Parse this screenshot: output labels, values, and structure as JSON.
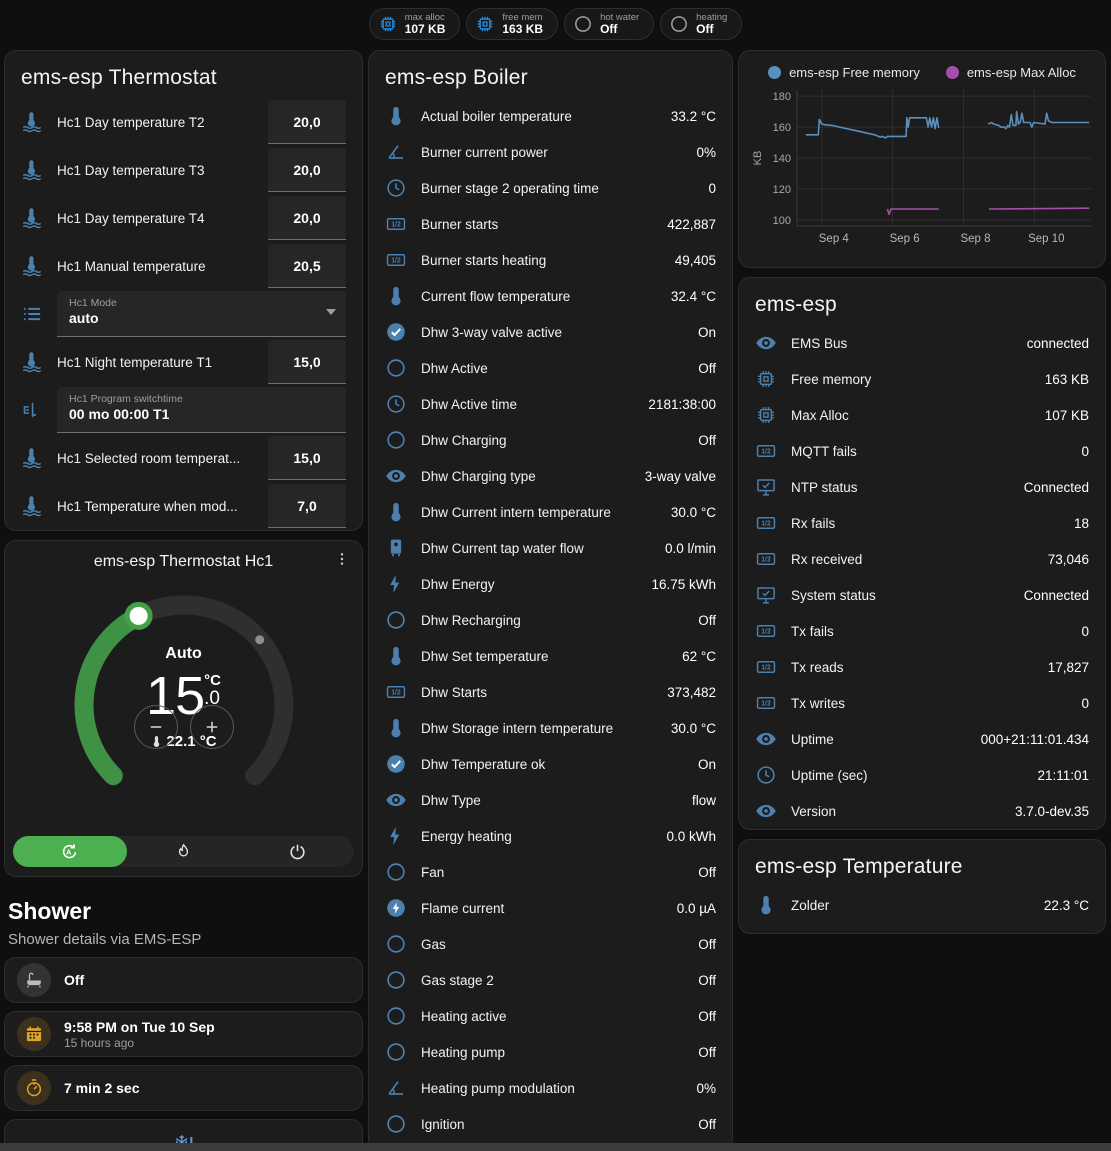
{
  "badges": [
    {
      "name": "max-alloc-badge",
      "label": "max alloc",
      "value": "107 KB",
      "icon": "chip",
      "icon_color": "#2196f3"
    },
    {
      "name": "free-mem-badge",
      "label": "free mem",
      "value": "163 KB",
      "icon": "chip",
      "icon_color": "#2196f3"
    },
    {
      "name": "hot-water-badge",
      "label": "hot water",
      "value": "Off",
      "icon": "circle",
      "icon_color": "#9e9e9e"
    },
    {
      "name": "heating-badge",
      "label": "heating",
      "value": "Off",
      "icon": "circle",
      "icon_color": "#9e9e9e"
    }
  ],
  "thermostat_card": {
    "title": "ems-esp Thermostat",
    "rows": [
      {
        "type": "number",
        "icon": "thermometer-water",
        "label": "Hc1 Day temperature T2",
        "value": "20,0"
      },
      {
        "type": "number",
        "icon": "thermometer-water",
        "label": "Hc1 Day temperature T3",
        "value": "20,0"
      },
      {
        "type": "number",
        "icon": "thermometer-water",
        "label": "Hc1 Day temperature T4",
        "value": "20,0"
      },
      {
        "type": "number",
        "icon": "thermometer-water",
        "label": "Hc1 Manual temperature",
        "value": "20,5"
      },
      {
        "type": "select",
        "icon": "list",
        "label": "Hc1 Mode",
        "value": "auto"
      },
      {
        "type": "number",
        "icon": "thermometer-water",
        "label": "Hc1 Night temperature T1",
        "value": "15,0"
      },
      {
        "type": "text",
        "icon": "switchtime",
        "label": "Hc1 Program switchtime",
        "value": "00 mo 00:00 T1"
      },
      {
        "type": "number",
        "icon": "thermometer-water",
        "label": "Hc1 Selected room temperat...",
        "value": "15,0"
      },
      {
        "type": "number",
        "icon": "thermometer-water",
        "label": "Hc1 Temperature when mod...",
        "value": "7,0"
      }
    ]
  },
  "dial_card": {
    "title": "ems-esp Thermostat Hc1",
    "mode": "Auto",
    "target_int": "15",
    "target_unit": "°C",
    "target_frac": ".0",
    "current": "22.1 °C",
    "arc_color": "#3f9143",
    "active_mode_color": "#4caf50"
  },
  "shower": {
    "title": "Shower",
    "subtitle": "Shower details via EMS-ESP",
    "items": [
      {
        "icon": "bathtub",
        "icon_color": "#bdbdbd",
        "circle_bg": "rgba(255,255,255,0.10)",
        "primary": "Off",
        "secondary": ""
      },
      {
        "icon": "calendar",
        "icon_color": "#dfa32a",
        "circle_bg": "rgba(223,163,42,0.16)",
        "primary": "9:58 PM on Tue 10 Sep",
        "secondary": "15 hours ago"
      },
      {
        "icon": "timer",
        "icon_color": "#dfa32a",
        "circle_bg": "rgba(223,163,42,0.16)",
        "primary": "7 min 2 sec",
        "secondary": ""
      },
      {
        "icon": "snowflake-alert",
        "icon_color": "#5f9bd5",
        "circle_bg": "",
        "primary": "",
        "secondary": ""
      }
    ]
  },
  "boiler_card": {
    "title": "ems-esp Boiler",
    "rows": [
      {
        "icon": "thermometer",
        "label": "Actual boiler temperature",
        "value": "33.2 °C"
      },
      {
        "icon": "angle",
        "label": "Burner current power",
        "value": "0%"
      },
      {
        "icon": "clock",
        "label": "Burner stage 2 operating time",
        "value": "0"
      },
      {
        "icon": "counter",
        "label": "Burner starts",
        "value": "422,887"
      },
      {
        "icon": "counter",
        "label": "Burner starts heating",
        "value": "49,405"
      },
      {
        "icon": "thermometer",
        "label": "Current flow temperature",
        "value": "32.4 °C"
      },
      {
        "icon": "check-circle",
        "label": "Dhw 3-way valve active",
        "value": "On"
      },
      {
        "icon": "circle",
        "label": "Dhw Active",
        "value": "Off"
      },
      {
        "icon": "clock",
        "label": "Dhw Active time",
        "value": "2181:38:00"
      },
      {
        "icon": "circle",
        "label": "Dhw Charging",
        "value": "Off"
      },
      {
        "icon": "eye",
        "label": "Dhw Charging type",
        "value": "3-way valve"
      },
      {
        "icon": "thermometer",
        "label": "Dhw Current intern temperature",
        "value": "30.0 °C"
      },
      {
        "icon": "water-boiler",
        "label": "Dhw Current tap water flow",
        "value": "0.0 l/min"
      },
      {
        "icon": "flash",
        "label": "Dhw Energy",
        "value": "16.75 kWh"
      },
      {
        "icon": "circle",
        "label": "Dhw Recharging",
        "value": "Off"
      },
      {
        "icon": "thermometer",
        "label": "Dhw Set temperature",
        "value": "62 °C"
      },
      {
        "icon": "counter",
        "label": "Dhw Starts",
        "value": "373,482"
      },
      {
        "icon": "thermometer",
        "label": "Dhw Storage intern temperature",
        "value": "30.0 °C"
      },
      {
        "icon": "check-circle",
        "label": "Dhw Temperature ok",
        "value": "On"
      },
      {
        "icon": "eye",
        "label": "Dhw Type",
        "value": "flow"
      },
      {
        "icon": "flash",
        "label": "Energy heating",
        "value": "0.0 kWh"
      },
      {
        "icon": "circle",
        "label": "Fan",
        "value": "Off"
      },
      {
        "icon": "flash-circle",
        "label": "Flame current",
        "value": "0.0 µA"
      },
      {
        "icon": "circle",
        "label": "Gas",
        "value": "Off"
      },
      {
        "icon": "circle",
        "label": "Gas stage 2",
        "value": "Off"
      },
      {
        "icon": "circle",
        "label": "Heating active",
        "value": "Off"
      },
      {
        "icon": "circle",
        "label": "Heating pump",
        "value": "Off"
      },
      {
        "icon": "angle",
        "label": "Heating pump modulation",
        "value": "0%"
      },
      {
        "icon": "circle",
        "label": "Ignition",
        "value": "Off"
      }
    ]
  },
  "chart_data": {
    "type": "line",
    "title": "",
    "xlabel": "",
    "ylabel": "KB",
    "xlim": [
      3.3,
      11.6
    ],
    "ylim": [
      96,
      184
    ],
    "grid": true,
    "legend_position": "top",
    "xticks": [
      {
        "x": 4,
        "label": "Sep 4"
      },
      {
        "x": 6,
        "label": "Sep 6"
      },
      {
        "x": 8,
        "label": "Sep 8"
      },
      {
        "x": 10,
        "label": "Sep 10"
      }
    ],
    "yticks": [
      100,
      120,
      140,
      160,
      180
    ],
    "series": [
      {
        "name": "ems-esp Free memory",
        "color": "#5b8fbc",
        "segments": [
          [
            [
              3.55,
              155
            ],
            [
              3.9,
              155
            ],
            [
              3.93,
              165
            ],
            [
              4.0,
              162
            ],
            [
              4.1,
              161.5
            ],
            [
              4.3,
              161
            ],
            [
              4.5,
              160
            ],
            [
              4.7,
              159
            ],
            [
              4.9,
              158
            ],
            [
              5.1,
              157
            ],
            [
              5.3,
              156
            ],
            [
              5.5,
              155
            ],
            [
              5.6,
              154
            ],
            [
              5.65,
              153.5
            ],
            [
              5.7,
              154
            ],
            [
              5.8,
              153
            ],
            [
              5.85,
              154
            ],
            [
              6.3,
              154
            ],
            [
              6.38,
              154
            ],
            [
              6.4,
              166
            ],
            [
              6.44,
              160
            ],
            [
              6.48,
              166
            ],
            [
              6.95,
              166
            ],
            [
              7.0,
              160
            ],
            [
              7.05,
              166
            ],
            [
              7.1,
              160
            ],
            [
              7.15,
              166
            ],
            [
              7.2,
              159
            ],
            [
              7.25,
              166
            ],
            [
              7.3,
              159.5
            ]
          ],
          [
            [
              8.7,
              162
            ],
            [
              8.8,
              163
            ],
            [
              8.85,
              162
            ],
            [
              9.0,
              161
            ],
            [
              9.05,
              160
            ],
            [
              9.15,
              160
            ],
            [
              9.2,
              159
            ],
            [
              9.25,
              161
            ],
            [
              9.3,
              160
            ],
            [
              9.35,
              168
            ],
            [
              9.4,
              161
            ],
            [
              9.48,
              161
            ],
            [
              9.5,
              170
            ],
            [
              9.55,
              162
            ],
            [
              9.6,
              163
            ],
            [
              9.65,
              169
            ],
            [
              9.7,
              163
            ],
            [
              9.88,
              163
            ],
            [
              9.93,
              160
            ],
            [
              9.98,
              163
            ],
            [
              10.3,
              162
            ],
            [
              10.35,
              169
            ],
            [
              10.4,
              164
            ],
            [
              10.5,
              163
            ],
            [
              11.0,
              163
            ],
            [
              11.55,
              163
            ]
          ]
        ]
      },
      {
        "name": "ems-esp Max Alloc",
        "color": "#a350ab",
        "segments": [
          [
            [
              5.85,
              107
            ],
            [
              5.9,
              103.5
            ],
            [
              5.95,
              107
            ],
            [
              7.3,
              107
            ]
          ],
          [
            [
              8.72,
              107
            ],
            [
              11.55,
              107.5
            ]
          ]
        ]
      }
    ]
  },
  "emsesp_card": {
    "title": "ems-esp",
    "rows": [
      {
        "icon": "eye",
        "label": "EMS Bus",
        "value": "connected"
      },
      {
        "icon": "chip",
        "label": "Free memory",
        "value": "163 KB"
      },
      {
        "icon": "chip",
        "label": "Max Alloc",
        "value": "107 KB"
      },
      {
        "icon": "counter",
        "label": "MQTT fails",
        "value": "0"
      },
      {
        "icon": "monitor-check",
        "label": "NTP status",
        "value": "Connected"
      },
      {
        "icon": "counter",
        "label": "Rx fails",
        "value": "18"
      },
      {
        "icon": "counter",
        "label": "Rx received",
        "value": "73,046"
      },
      {
        "icon": "monitor-check",
        "label": "System status",
        "value": "Connected"
      },
      {
        "icon": "counter",
        "label": "Tx fails",
        "value": "0"
      },
      {
        "icon": "counter",
        "label": "Tx reads",
        "value": "17,827"
      },
      {
        "icon": "counter",
        "label": "Tx writes",
        "value": "0"
      },
      {
        "icon": "eye",
        "label": "Uptime",
        "value": "000+21:11:01.434"
      },
      {
        "icon": "clock",
        "label": "Uptime (sec)",
        "value": "21:11:01"
      },
      {
        "icon": "eye",
        "label": "Version",
        "value": "3.7.0-dev.35"
      }
    ]
  },
  "temperature_card": {
    "title": "ems-esp Temperature",
    "rows": [
      {
        "icon": "thermometer",
        "label": "Zolder",
        "value": "22.3 °C"
      }
    ]
  },
  "colors": {
    "entity_icon_blue": "#4d80ad",
    "accent_green": "#4caf50",
    "amber": "#dfa32a"
  }
}
